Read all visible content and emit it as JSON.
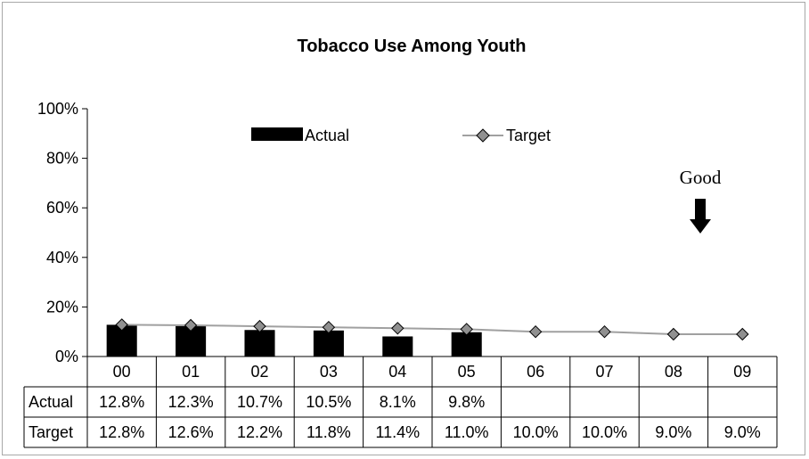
{
  "chart_data": {
    "type": "bar",
    "title": "Tobacco Use Among Youth",
    "categories": [
      "00",
      "01",
      "02",
      "03",
      "04",
      "05",
      "06",
      "07",
      "08",
      "09"
    ],
    "series": [
      {
        "name": "Actual",
        "kind": "bar",
        "color": "#000000",
        "values": [
          12.8,
          12.3,
          10.7,
          10.5,
          8.1,
          9.8,
          null,
          null,
          null,
          null
        ],
        "labels": [
          "12.8%",
          "12.3%",
          "10.7%",
          "10.5%",
          "8.1%",
          "9.8%",
          "",
          "",
          "",
          ""
        ]
      },
      {
        "name": "Target",
        "kind": "line",
        "color": "#a0a0a0",
        "marker_color": "#909090",
        "values": [
          12.8,
          12.6,
          12.2,
          11.8,
          11.4,
          11.0,
          10.0,
          10.0,
          9.0,
          9.0
        ],
        "labels": [
          "12.8%",
          "12.6%",
          "12.2%",
          "11.8%",
          "11.4%",
          "11.0%",
          "10.0%",
          "10.0%",
          "9.0%",
          "9.0%"
        ]
      }
    ],
    "ylim": [
      0,
      100
    ],
    "yticks": [
      "0%",
      "20%",
      "40%",
      "60%",
      "80%",
      "100%"
    ],
    "ytick_values": [
      0,
      20,
      40,
      60,
      80,
      100
    ],
    "grid": false,
    "legend_placement": "top",
    "data_table": true,
    "annotation": {
      "text": "Good",
      "arrow": "down"
    }
  }
}
